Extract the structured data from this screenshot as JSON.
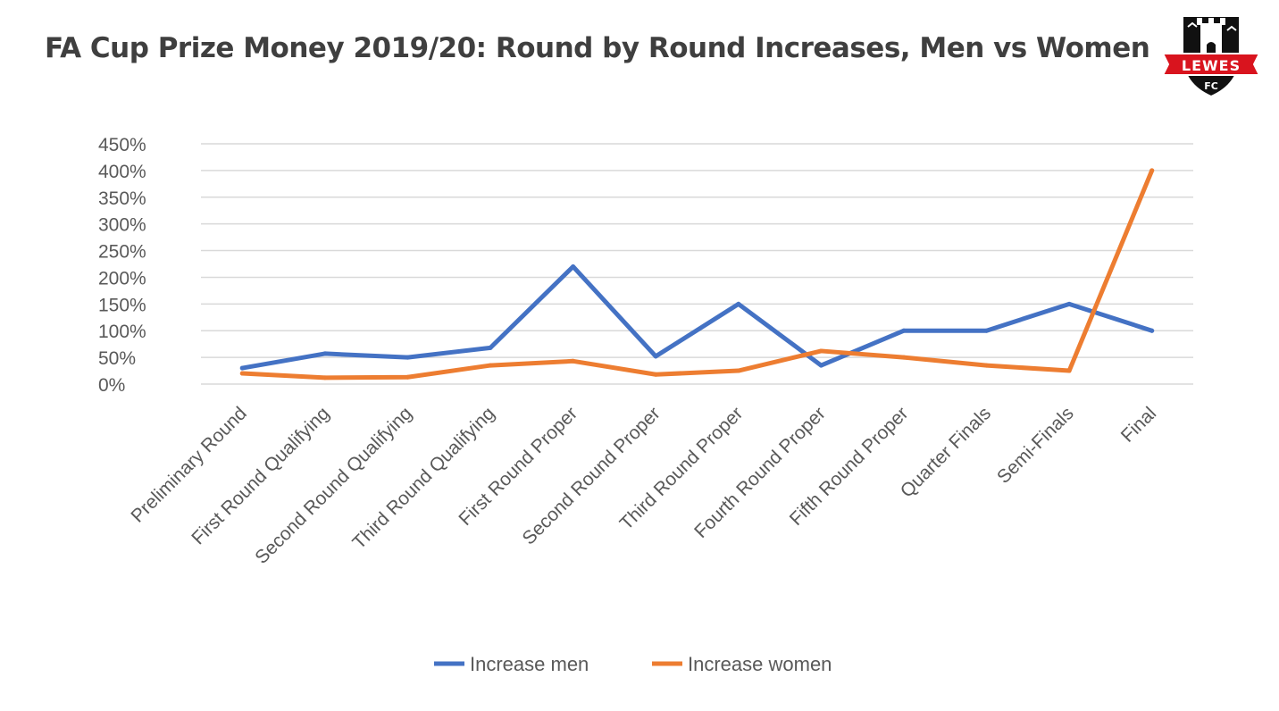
{
  "title": "FA Cup Prize Money 2019/20: Round by Round Increases, Men vs Women",
  "logo": {
    "name": "LEWES",
    "sub": "FC",
    "colors": {
      "red": "#d9141e",
      "black": "#111111",
      "white": "#ffffff"
    }
  },
  "chart_data": {
    "type": "line",
    "categories": [
      "Preliminary Round",
      "First Round Qualifying",
      "Second Round Qualifying",
      "Third Round Qualifying",
      "First Round Proper",
      "Second Round Proper",
      "Third Round Proper",
      "Fourth Round Proper",
      "Fifth Round Proper",
      "Quarter Finals",
      "Semi-Finals",
      "Final"
    ],
    "series": [
      {
        "name": "Increase men",
        "color": "#4472c4",
        "values": [
          30,
          57,
          50,
          68,
          220,
          52,
          150,
          35,
          100,
          100,
          150,
          100
        ]
      },
      {
        "name": "Increase women",
        "color": "#ed7d31",
        "values": [
          20,
          12,
          13,
          35,
          43,
          18,
          25,
          62,
          50,
          35,
          25,
          400
        ]
      }
    ],
    "yticks": [
      "0%",
      "50%",
      "100%",
      "150%",
      "200%",
      "250%",
      "300%",
      "350%",
      "400%",
      "450%"
    ],
    "ylim": [
      0,
      450
    ],
    "grid": true,
    "legend_position": "bottom"
  }
}
